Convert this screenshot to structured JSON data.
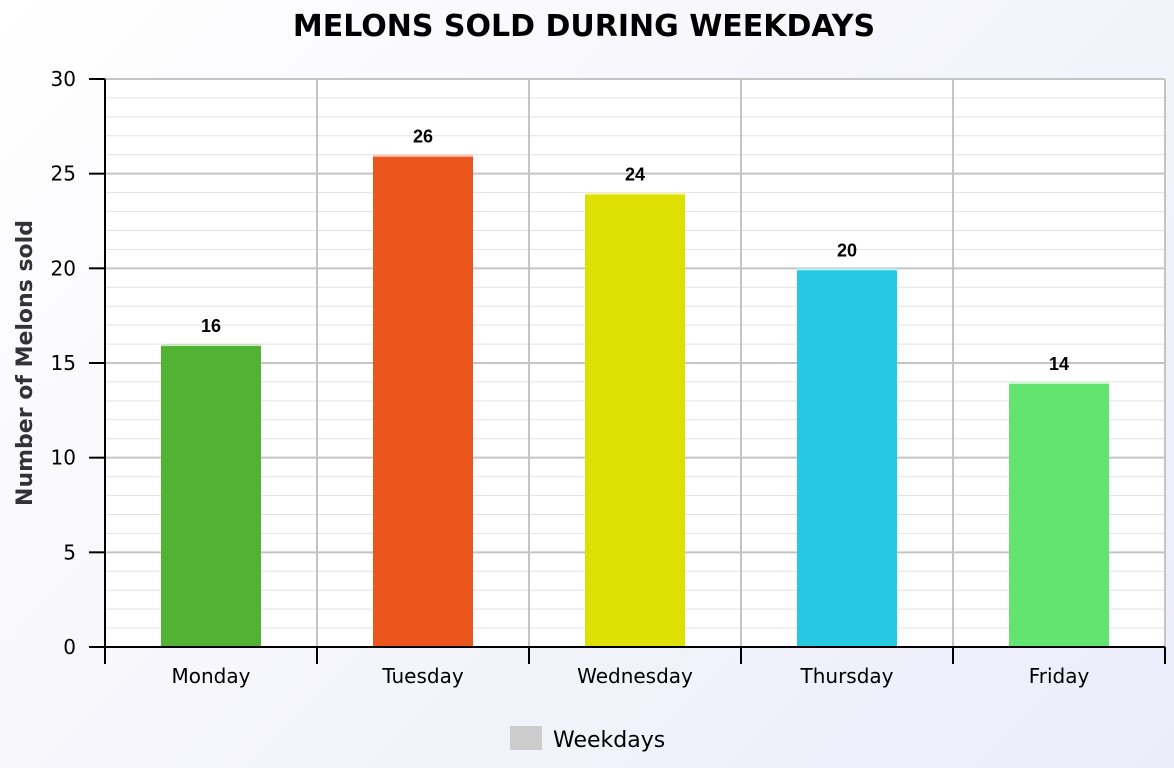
{
  "chart_data": {
    "type": "bar",
    "title": "MELONS SOLD DURING WEEKDAYS",
    "xlabel": "",
    "ylabel": "Number of Melons sold",
    "categories": [
      "Monday",
      "Tuesday",
      "Wednesday",
      "Thursday",
      "Friday"
    ],
    "values": [
      16,
      26,
      24,
      20,
      14
    ],
    "colors": [
      "#52b234",
      "#ea561d",
      "#dde000",
      "#27c9e2",
      "#63e36f"
    ],
    "ylim": [
      0,
      30
    ],
    "yticks": [
      "0",
      "5",
      "10",
      "15",
      "20",
      "25",
      "30"
    ],
    "grid": true,
    "data_labels": [
      "16",
      "26",
      "24",
      "20",
      "14"
    ],
    "legend": {
      "position": "bottom",
      "entries": [
        {
          "label": "Weekdays",
          "color": "#cccccc"
        }
      ]
    }
  }
}
